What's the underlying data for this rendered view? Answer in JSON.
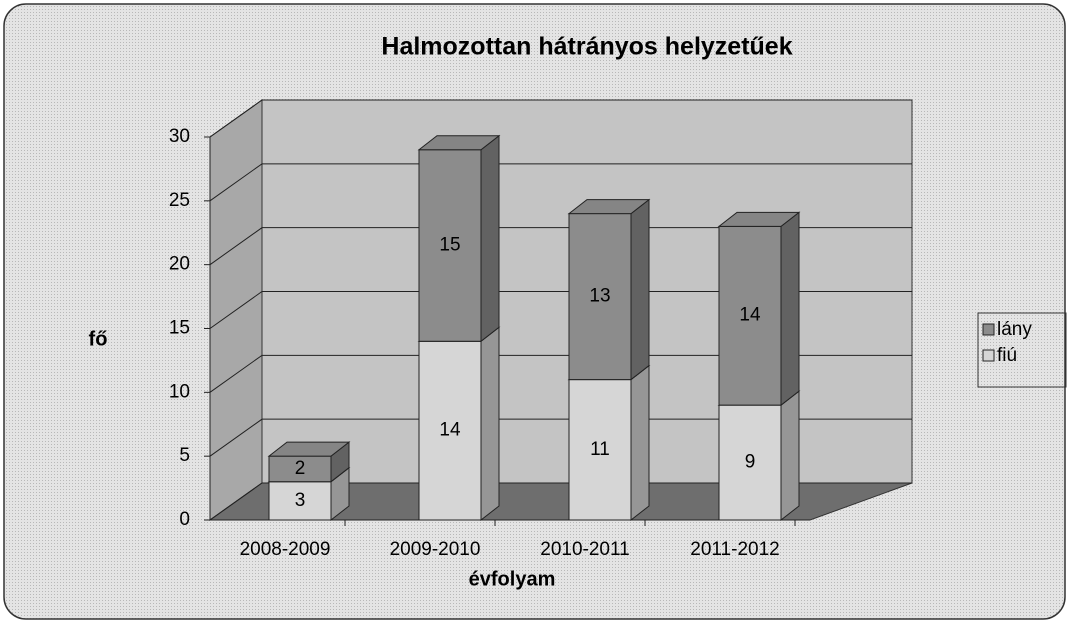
{
  "chart_data": {
    "type": "bar",
    "stacked": true,
    "title": "Halmozottan hátrányos helyzetűek",
    "x_label": "évfolyam",
    "y_label": "fő",
    "categories": [
      "2008-2009",
      "2009-2010",
      "2010-2011",
      "2011-2012"
    ],
    "series": [
      {
        "name": "fiú",
        "color": "#d6d6d6",
        "values": [
          3,
          14,
          11,
          9
        ]
      },
      {
        "name": "lány",
        "color": "#8c8c8c",
        "values": [
          2,
          15,
          13,
          14
        ]
      }
    ],
    "ylim": [
      0,
      30
    ],
    "yticks": [
      0,
      5,
      10,
      15,
      20,
      25,
      30
    ],
    "grid": true,
    "legend": "right"
  }
}
